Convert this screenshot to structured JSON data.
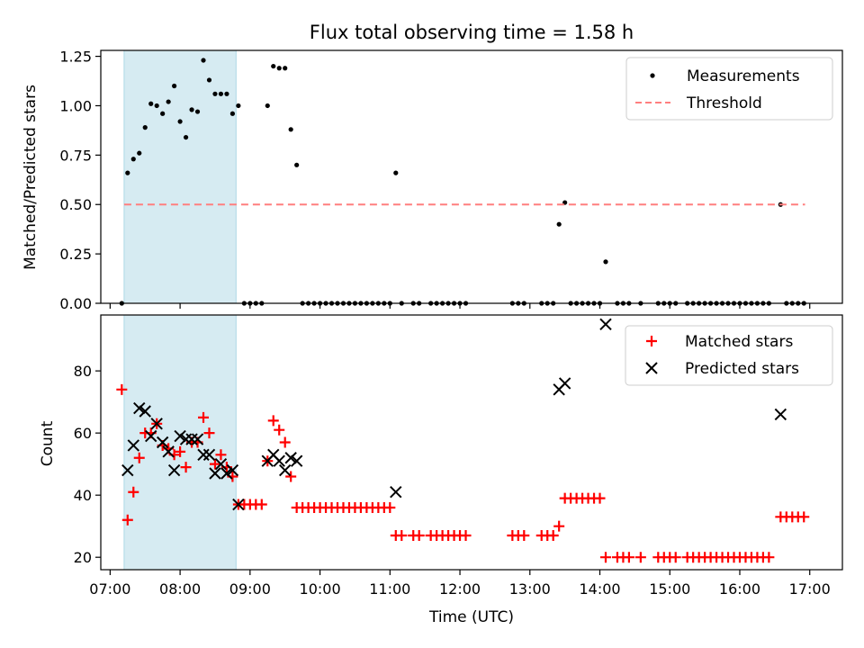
{
  "chart_data": [
    {
      "type": "scatter",
      "title": "Flux total observing time = 1.58 h",
      "ylabel": "Matched/Predicted stars",
      "xlim": [
        "06:52",
        "17:28"
      ],
      "ylim": [
        0,
        1.28
      ],
      "yticks": [
        "0.00",
        "0.25",
        "0.50",
        "0.75",
        "1.00",
        "1.25"
      ],
      "grid": false,
      "legend_position": "top-right",
      "highlight_span": {
        "from": "07:12",
        "to": "08:48",
        "color": "#add8e6"
      },
      "series": [
        {
          "name": "Measurements",
          "marker": "dot",
          "color": "#000000",
          "points": [
            [
              "07:10",
              0.0
            ],
            [
              "07:15",
              0.66
            ],
            [
              "07:20",
              0.73
            ],
            [
              "07:25",
              0.76
            ],
            [
              "07:30",
              0.89
            ],
            [
              "07:35",
              1.01
            ],
            [
              "07:40",
              1.0
            ],
            [
              "07:45",
              0.96
            ],
            [
              "07:50",
              1.02
            ],
            [
              "07:55",
              1.1
            ],
            [
              "08:00",
              0.92
            ],
            [
              "08:05",
              0.84
            ],
            [
              "08:10",
              0.98
            ],
            [
              "08:15",
              0.97
            ],
            [
              "08:20",
              1.23
            ],
            [
              "08:25",
              1.13
            ],
            [
              "08:30",
              1.06
            ],
            [
              "08:35",
              1.06
            ],
            [
              "08:40",
              1.06
            ],
            [
              "08:45",
              0.96
            ],
            [
              "08:50",
              1.0
            ],
            [
              "08:55",
              0.0
            ],
            [
              "09:00",
              0.0
            ],
            [
              "09:05",
              0.0
            ],
            [
              "09:10",
              0.0
            ],
            [
              "09:15",
              1.0
            ],
            [
              "09:20",
              1.2
            ],
            [
              "09:25",
              1.19
            ],
            [
              "09:30",
              1.19
            ],
            [
              "09:35",
              0.88
            ],
            [
              "09:40",
              0.7
            ],
            [
              "09:45",
              0.0
            ],
            [
              "09:50",
              0.0
            ],
            [
              "09:55",
              0.0
            ],
            [
              "10:00",
              0.0
            ],
            [
              "10:05",
              0.0
            ],
            [
              "10:10",
              0.0
            ],
            [
              "10:15",
              0.0
            ],
            [
              "10:20",
              0.0
            ],
            [
              "10:25",
              0.0
            ],
            [
              "10:30",
              0.0
            ],
            [
              "10:35",
              0.0
            ],
            [
              "10:40",
              0.0
            ],
            [
              "10:45",
              0.0
            ],
            [
              "10:50",
              0.0
            ],
            [
              "10:55",
              0.0
            ],
            [
              "11:00",
              0.0
            ],
            [
              "11:05",
              0.66
            ],
            [
              "11:10",
              0.0
            ],
            [
              "11:20",
              0.0
            ],
            [
              "11:25",
              0.0
            ],
            [
              "11:35",
              0.0
            ],
            [
              "11:40",
              0.0
            ],
            [
              "11:45",
              0.0
            ],
            [
              "11:50",
              0.0
            ],
            [
              "11:55",
              0.0
            ],
            [
              "12:00",
              0.0
            ],
            [
              "12:05",
              0.0
            ],
            [
              "12:45",
              0.0
            ],
            [
              "12:50",
              0.0
            ],
            [
              "12:55",
              0.0
            ],
            [
              "13:10",
              0.0
            ],
            [
              "13:15",
              0.0
            ],
            [
              "13:20",
              0.0
            ],
            [
              "13:25",
              0.4
            ],
            [
              "13:30",
              0.51
            ],
            [
              "13:35",
              0.0
            ],
            [
              "13:40",
              0.0
            ],
            [
              "13:45",
              0.0
            ],
            [
              "13:50",
              0.0
            ],
            [
              "13:55",
              0.0
            ],
            [
              "14:00",
              0.0
            ],
            [
              "14:05",
              0.21
            ],
            [
              "14:15",
              0.0
            ],
            [
              "14:20",
              0.0
            ],
            [
              "14:25",
              0.0
            ],
            [
              "14:35",
              0.0
            ],
            [
              "14:50",
              0.0
            ],
            [
              "14:55",
              0.0
            ],
            [
              "15:00",
              0.0
            ],
            [
              "15:05",
              0.0
            ],
            [
              "15:15",
              0.0
            ],
            [
              "15:20",
              0.0
            ],
            [
              "15:25",
              0.0
            ],
            [
              "15:30",
              0.0
            ],
            [
              "15:35",
              0.0
            ],
            [
              "15:40",
              0.0
            ],
            [
              "15:45",
              0.0
            ],
            [
              "15:50",
              0.0
            ],
            [
              "15:55",
              0.0
            ],
            [
              "16:00",
              0.0
            ],
            [
              "16:05",
              0.0
            ],
            [
              "16:10",
              0.0
            ],
            [
              "16:15",
              0.0
            ],
            [
              "16:20",
              0.0
            ],
            [
              "16:25",
              0.0
            ],
            [
              "16:35",
              0.5
            ],
            [
              "16:40",
              0.0
            ],
            [
              "16:45",
              0.0
            ],
            [
              "16:50",
              0.0
            ],
            [
              "16:55",
              0.0
            ]
          ]
        },
        {
          "name": "Threshold",
          "marker": "dashed-line",
          "color": "#ff7f7f",
          "points": [
            [
              "07:12",
              0.5
            ],
            [
              "16:56",
              0.5
            ]
          ]
        }
      ]
    },
    {
      "type": "scatter",
      "xlabel": "Time (UTC)",
      "ylabel": "Count",
      "xlim": [
        "06:52",
        "17:28"
      ],
      "ylim": [
        16,
        98
      ],
      "yticks": [
        "20",
        "40",
        "60",
        "80"
      ],
      "xticks": [
        "07:00",
        "08:00",
        "09:00",
        "10:00",
        "11:00",
        "12:00",
        "13:00",
        "14:00",
        "15:00",
        "16:00",
        "17:00"
      ],
      "grid": false,
      "legend_position": "top-right",
      "highlight_span": {
        "from": "07:12",
        "to": "08:48",
        "color": "#add8e6"
      },
      "series": [
        {
          "name": "Matched stars",
          "marker": "plus",
          "color": "#ff0000",
          "points": [
            [
              "07:10",
              74
            ],
            [
              "07:15",
              32
            ],
            [
              "07:20",
              41
            ],
            [
              "07:25",
              52
            ],
            [
              "07:30",
              60
            ],
            [
              "07:35",
              60
            ],
            [
              "07:40",
              63
            ],
            [
              "07:45",
              56
            ],
            [
              "07:50",
              55
            ],
            [
              "07:55",
              53
            ],
            [
              "08:00",
              54
            ],
            [
              "08:05",
              49
            ],
            [
              "08:10",
              57
            ],
            [
              "08:15",
              57
            ],
            [
              "08:20",
              65
            ],
            [
              "08:25",
              60
            ],
            [
              "08:30",
              50
            ],
            [
              "08:35",
              53
            ],
            [
              "08:40",
              49
            ],
            [
              "08:45",
              46
            ],
            [
              "08:50",
              37
            ],
            [
              "08:55",
              37
            ],
            [
              "09:00",
              37
            ],
            [
              "09:05",
              37
            ],
            [
              "09:10",
              37
            ],
            [
              "09:15",
              51
            ],
            [
              "09:20",
              64
            ],
            [
              "09:25",
              61
            ],
            [
              "09:30",
              57
            ],
            [
              "09:35",
              46
            ],
            [
              "09:40",
              36
            ],
            [
              "09:45",
              36
            ],
            [
              "09:50",
              36
            ],
            [
              "09:55",
              36
            ],
            [
              "10:00",
              36
            ],
            [
              "10:05",
              36
            ],
            [
              "10:10",
              36
            ],
            [
              "10:15",
              36
            ],
            [
              "10:20",
              36
            ],
            [
              "10:25",
              36
            ],
            [
              "10:30",
              36
            ],
            [
              "10:35",
              36
            ],
            [
              "10:40",
              36
            ],
            [
              "10:45",
              36
            ],
            [
              "10:50",
              36
            ],
            [
              "10:55",
              36
            ],
            [
              "11:00",
              36
            ],
            [
              "11:05",
              27
            ],
            [
              "11:10",
              27
            ],
            [
              "11:20",
              27
            ],
            [
              "11:25",
              27
            ],
            [
              "11:35",
              27
            ],
            [
              "11:40",
              27
            ],
            [
              "11:45",
              27
            ],
            [
              "11:50",
              27
            ],
            [
              "11:55",
              27
            ],
            [
              "12:00",
              27
            ],
            [
              "12:05",
              27
            ],
            [
              "12:45",
              27
            ],
            [
              "12:50",
              27
            ],
            [
              "12:55",
              27
            ],
            [
              "13:10",
              27
            ],
            [
              "13:15",
              27
            ],
            [
              "13:20",
              27
            ],
            [
              "13:25",
              30
            ],
            [
              "13:30",
              39
            ],
            [
              "13:35",
              39
            ],
            [
              "13:40",
              39
            ],
            [
              "13:45",
              39
            ],
            [
              "13:50",
              39
            ],
            [
              "13:55",
              39
            ],
            [
              "14:00",
              39
            ],
            [
              "14:05",
              20
            ],
            [
              "14:15",
              20
            ],
            [
              "14:20",
              20
            ],
            [
              "14:25",
              20
            ],
            [
              "14:35",
              20
            ],
            [
              "14:50",
              20
            ],
            [
              "14:55",
              20
            ],
            [
              "15:00",
              20
            ],
            [
              "15:05",
              20
            ],
            [
              "15:15",
              20
            ],
            [
              "15:20",
              20
            ],
            [
              "15:25",
              20
            ],
            [
              "15:30",
              20
            ],
            [
              "15:35",
              20
            ],
            [
              "15:40",
              20
            ],
            [
              "15:45",
              20
            ],
            [
              "15:50",
              20
            ],
            [
              "15:55",
              20
            ],
            [
              "16:00",
              20
            ],
            [
              "16:05",
              20
            ],
            [
              "16:10",
              20
            ],
            [
              "16:15",
              20
            ],
            [
              "16:20",
              20
            ],
            [
              "16:25",
              20
            ],
            [
              "16:35",
              33
            ],
            [
              "16:40",
              33
            ],
            [
              "16:45",
              33
            ],
            [
              "16:50",
              33
            ],
            [
              "16:55",
              33
            ]
          ]
        },
        {
          "name": "Predicted stars",
          "marker": "x",
          "color": "#000000",
          "points": [
            [
              "07:15",
              48
            ],
            [
              "07:20",
              56
            ],
            [
              "07:25",
              68
            ],
            [
              "07:30",
              67
            ],
            [
              "07:35",
              59
            ],
            [
              "07:40",
              63
            ],
            [
              "07:45",
              57
            ],
            [
              "07:50",
              54
            ],
            [
              "07:55",
              48
            ],
            [
              "08:00",
              59
            ],
            [
              "08:05",
              58
            ],
            [
              "08:10",
              58
            ],
            [
              "08:15",
              58
            ],
            [
              "08:20",
              53
            ],
            [
              "08:25",
              53
            ],
            [
              "08:30",
              47
            ],
            [
              "08:35",
              50
            ],
            [
              "08:40",
              47
            ],
            [
              "08:45",
              48
            ],
            [
              "08:50",
              37
            ],
            [
              "09:15",
              51
            ],
            [
              "09:20",
              53
            ],
            [
              "09:25",
              51
            ],
            [
              "09:30",
              48
            ],
            [
              "09:35",
              52
            ],
            [
              "09:40",
              51
            ],
            [
              "11:05",
              41
            ],
            [
              "13:25",
              74
            ],
            [
              "13:30",
              76
            ],
            [
              "14:05",
              95
            ],
            [
              "16:35",
              66
            ]
          ]
        }
      ]
    }
  ]
}
